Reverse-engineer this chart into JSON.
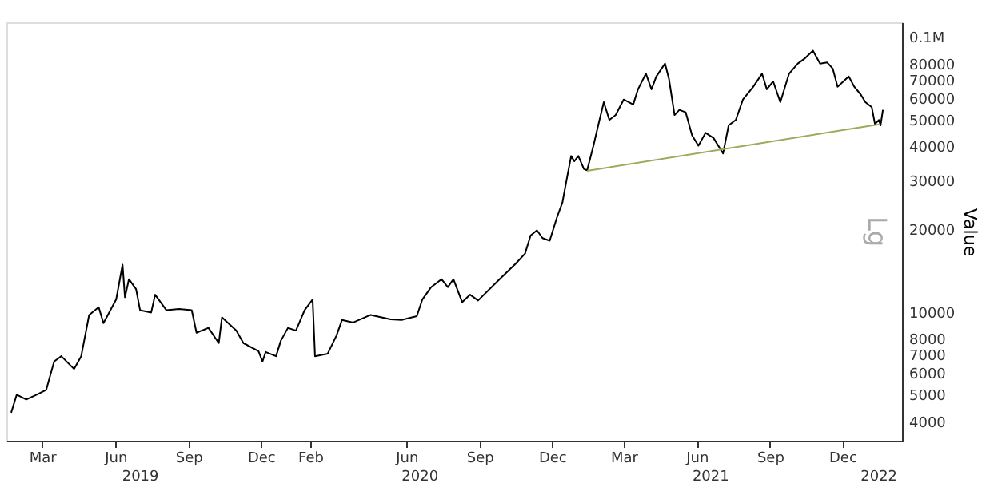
{
  "chart_data": {
    "type": "line",
    "ylabel": "Value",
    "log": "y",
    "annotations": [
      "Lg",
      "2019",
      "2020",
      "2021",
      "2022"
    ],
    "xlim": [
      "2019-01-29",
      "2022-02-28"
    ],
    "ylim": [
      3400,
      113000
    ],
    "xticks": [
      {
        "value": "2019-03-15",
        "label": "Mar"
      },
      {
        "value": "2019-06-15",
        "label": "Jun"
      },
      {
        "value": "2019-09-15",
        "label": "Sep"
      },
      {
        "value": "2019-12-15",
        "label": "Dec"
      },
      {
        "value": "2020-02-15",
        "label": "Feb"
      },
      {
        "value": "2020-06-15",
        "label": "Jun"
      },
      {
        "value": "2020-09-15",
        "label": "Sep"
      },
      {
        "value": "2020-12-15",
        "label": "Dec"
      },
      {
        "value": "2021-03-15",
        "label": "Mar"
      },
      {
        "value": "2021-06-15",
        "label": "Jun"
      },
      {
        "value": "2021-09-15",
        "label": "Sep"
      },
      {
        "value": "2021-12-15",
        "label": "Dec"
      }
    ],
    "yticks": [
      4000,
      5000,
      6000,
      7000,
      8000,
      10000,
      20000,
      30000,
      40000,
      50000,
      60000,
      70000,
      80000,
      {
        "value": 100000,
        "label": "0.1M"
      }
    ],
    "series": [
      {
        "color": "#000000",
        "x": [
          "2019-02-04",
          "2019-02-11",
          "2019-02-23",
          "2019-03-08",
          "2019-03-20",
          "2019-03-30",
          "2019-04-08",
          "2019-04-24",
          "2019-05-03",
          "2019-05-13",
          "2019-05-25",
          "2019-05-31",
          "2019-06-16",
          "2019-06-24",
          "2019-06-27",
          "2019-07-02",
          "2019-07-11",
          "2019-07-16",
          "2019-07-30",
          "2019-08-04",
          "2019-08-18",
          "2019-09-03",
          "2019-09-19",
          "2019-09-25",
          "2019-10-10",
          "2019-10-23",
          "2019-10-27",
          "2019-11-14",
          "2019-11-23",
          "2019-12-12",
          "2019-12-17",
          "2019-12-21",
          "2020-01-03",
          "2020-01-09",
          "2020-01-18",
          "2020-01-28",
          "2020-02-08",
          "2020-02-18",
          "2020-02-21",
          "2020-03-08",
          "2020-03-19",
          "2020-03-26",
          "2020-04-09",
          "2020-05-01",
          "2020-05-26",
          "2020-06-09",
          "2020-06-28",
          "2020-07-05",
          "2020-07-16",
          "2020-07-29",
          "2020-08-06",
          "2020-08-13",
          "2020-08-24",
          "2020-09-03",
          "2020-09-13",
          "2020-10-10",
          "2020-10-30",
          "2020-11-11",
          "2020-11-18",
          "2020-11-26",
          "2020-12-03",
          "2020-12-12",
          "2020-12-21",
          "2020-12-28",
          "2021-01-03",
          "2021-01-08",
          "2021-01-12",
          "2021-01-17",
          "2021-01-24",
          "2021-01-28",
          "2021-02-05",
          "2021-02-11",
          "2021-02-18",
          "2021-02-25",
          "2021-03-05",
          "2021-03-15",
          "2021-03-27",
          "2021-04-02",
          "2021-04-12",
          "2021-04-19",
          "2021-04-25",
          "2021-05-06",
          "2021-05-11",
          "2021-05-18",
          "2021-05-24",
          "2021-06-01",
          "2021-06-09",
          "2021-06-17",
          "2021-06-26",
          "2021-07-06",
          "2021-07-18",
          "2021-07-25",
          "2021-08-03",
          "2021-08-12",
          "2021-08-25",
          "2021-09-05",
          "2021-09-11",
          "2021-09-19",
          "2021-09-28",
          "2021-10-09",
          "2021-10-20",
          "2021-10-29",
          "2021-11-08",
          "2021-11-17",
          "2021-11-26",
          "2021-12-03",
          "2021-12-09",
          "2021-12-23",
          "2021-12-30",
          "2022-01-07",
          "2022-01-13",
          "2022-01-21",
          "2022-01-25",
          "2022-01-30",
          "2022-02-01",
          "2022-02-04"
        ],
        "values": [
          4300,
          5000,
          4800,
          5000,
          5200,
          6600,
          6900,
          6200,
          6900,
          9750,
          10400,
          9100,
          11100,
          14850,
          11300,
          13150,
          12100,
          10150,
          9950,
          11550,
          10150,
          10250,
          10150,
          8400,
          8750,
          7700,
          9550,
          8550,
          7700,
          7200,
          6600,
          7150,
          6900,
          7850,
          8750,
          8550,
          10150,
          11100,
          6900,
          7050,
          8200,
          9350,
          9150,
          9750,
          9400,
          9350,
          9650,
          11100,
          12300,
          13150,
          12300,
          13150,
          10850,
          11550,
          11000,
          13150,
          14950,
          16300,
          18950,
          19800,
          18550,
          18150,
          22000,
          25000,
          31000,
          36900,
          35300,
          36900,
          33100,
          32700,
          40200,
          47700,
          57900,
          49900,
          52000,
          59200,
          56800,
          64500,
          73500,
          64500,
          71800,
          80000,
          70300,
          52000,
          54300,
          53200,
          43900,
          40200,
          44800,
          42900,
          37700,
          47700,
          49900,
          59200,
          65900,
          73500,
          64500,
          68900,
          57900,
          73500,
          80000,
          83600,
          89100,
          80000,
          80700,
          76600,
          65900,
          71800,
          65900,
          61800,
          57900,
          55500,
          48200,
          49900,
          47700,
          54300
        ]
      },
      {
        "type": "line",
        "color": "#9bab5b",
        "x": [
          "2021-01-28",
          "2022-02-01"
        ],
        "values": [
          32600,
          48200
        ]
      }
    ]
  }
}
